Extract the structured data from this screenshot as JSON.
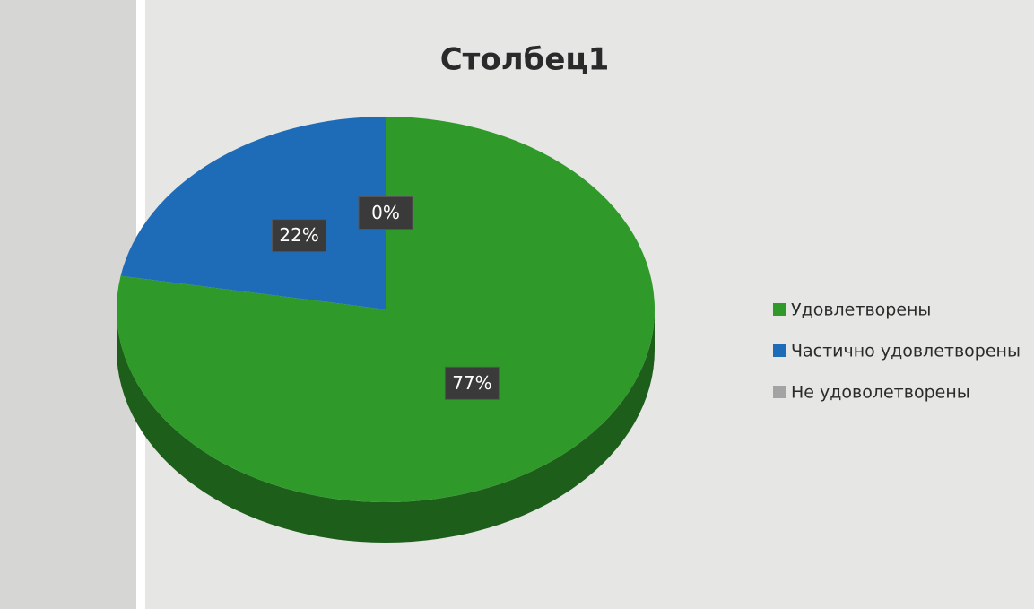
{
  "chart_data": {
    "type": "pie",
    "title": "Столбец1",
    "categories": [
      "Удовлетворены",
      "Частично удовлетворены",
      "Не удоволетворены"
    ],
    "values": [
      77,
      22,
      0
    ],
    "value_labels": [
      "77%",
      "22%",
      "0%"
    ],
    "colors": [
      "#2f9a2a",
      "#1e6cb8",
      "#a3a3a3"
    ],
    "legend": "right"
  }
}
